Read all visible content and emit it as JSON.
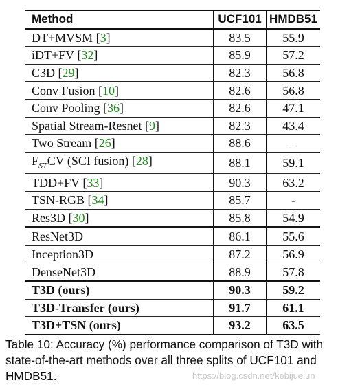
{
  "table": {
    "headers": [
      "Method",
      "UCF101",
      "HMDB51"
    ],
    "rows": [
      {
        "method": "DT+MVSM",
        "cite": "3",
        "ucf": "83.5",
        "hmdb": "55.9"
      },
      {
        "method": "iDT+FV",
        "cite": "32",
        "ucf": "85.9",
        "hmdb": "57.2"
      },
      {
        "method": "C3D",
        "cite": "29",
        "ucf": "82.3",
        "hmdb": "56.8"
      },
      {
        "method": "Conv Fusion",
        "cite": "10",
        "ucf": "82.6",
        "hmdb": "56.8"
      },
      {
        "method": "Conv Pooling",
        "cite": "36",
        "ucf": "82.6",
        "hmdb": "47.1"
      },
      {
        "method": "Spatial Stream-Resnet",
        "cite": "9",
        "ucf": "82.3",
        "hmdb": "43.4"
      },
      {
        "method": "Two Stream",
        "cite": "26",
        "ucf": "88.6",
        "hmdb": "–"
      },
      {
        "method_prefix": "F",
        "method_sub": "ST",
        "method": "CV (SCI fusion)",
        "cite": "28",
        "ucf": "88.1",
        "hmdb": "59.1"
      },
      {
        "method": "TDD+FV",
        "cite": "33",
        "ucf": "90.3",
        "hmdb": "63.2"
      },
      {
        "method": "TSN-RGB",
        "cite": "34",
        "ucf": "85.7",
        "hmdb": "-"
      },
      {
        "method": "Res3D",
        "cite": "30",
        "ucf": "85.8",
        "hmdb": "54.9"
      },
      {
        "method": "ResNet3D",
        "ucf": "86.1",
        "hmdb": "55.6"
      },
      {
        "method": "Inception3D",
        "ucf": "87.2",
        "hmdb": "56.9"
      },
      {
        "method": "DenseNet3D",
        "ucf": "88.9",
        "hmdb": "57.8"
      },
      {
        "method": "T3D (ours)",
        "ucf": "90.3",
        "hmdb": "59.2"
      },
      {
        "method": "T3D-Transfer (ours)",
        "ucf": "91.7",
        "hmdb": "61.1"
      },
      {
        "method": "T3D+TSN (ours)",
        "ucf": "93.2",
        "hmdb": "63.5"
      }
    ]
  },
  "caption": "Table 10: Accuracy (%) performance comparison of T3D with state-of-the-art methods over all three splits of UCF101 and HMDB51.",
  "watermark": "https://blog.csdn.net/kebijuelun",
  "colors": {
    "citation": "#1a8d1a",
    "watermark": "#c8c8c8"
  }
}
